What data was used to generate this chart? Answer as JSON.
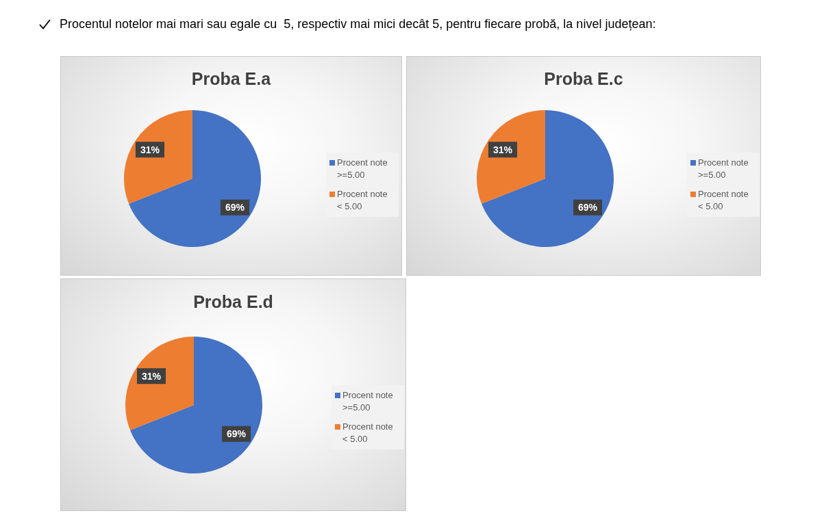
{
  "chart_data": [
    {
      "type": "pie",
      "title": "Proba E.a",
      "categories": [
        "Procent note >=5.00",
        "Procent note < 5.00"
      ],
      "values": [
        69,
        31
      ],
      "colors": [
        "#4472c4",
        "#ed7d31"
      ],
      "value_labels": [
        "69%",
        "31%"
      ],
      "legend": "right",
      "annotations": [
        "Procentul notelor mai mari sau egale cu  5, respectiv mai mici decât 5, pentru fiecare probă, la nivel județean:"
      ]
    },
    {
      "type": "pie",
      "title": "Proba E.c",
      "categories": [
        "Procent note >=5.00",
        "Procent note < 5.00"
      ],
      "values": [
        69,
        31
      ],
      "colors": [
        "#4472c4",
        "#ed7d31"
      ],
      "value_labels": [
        "69%",
        "31%"
      ],
      "legend": "right"
    },
    {
      "type": "pie",
      "title": "Proba E.d",
      "categories": [
        "Procent note >=5.00",
        "Procent note < 5.00"
      ],
      "values": [
        69,
        31
      ],
      "colors": [
        "#4472c4",
        "#ed7d31"
      ],
      "value_labels": [
        "69%",
        "31%"
      ],
      "legend": "right"
    }
  ]
}
